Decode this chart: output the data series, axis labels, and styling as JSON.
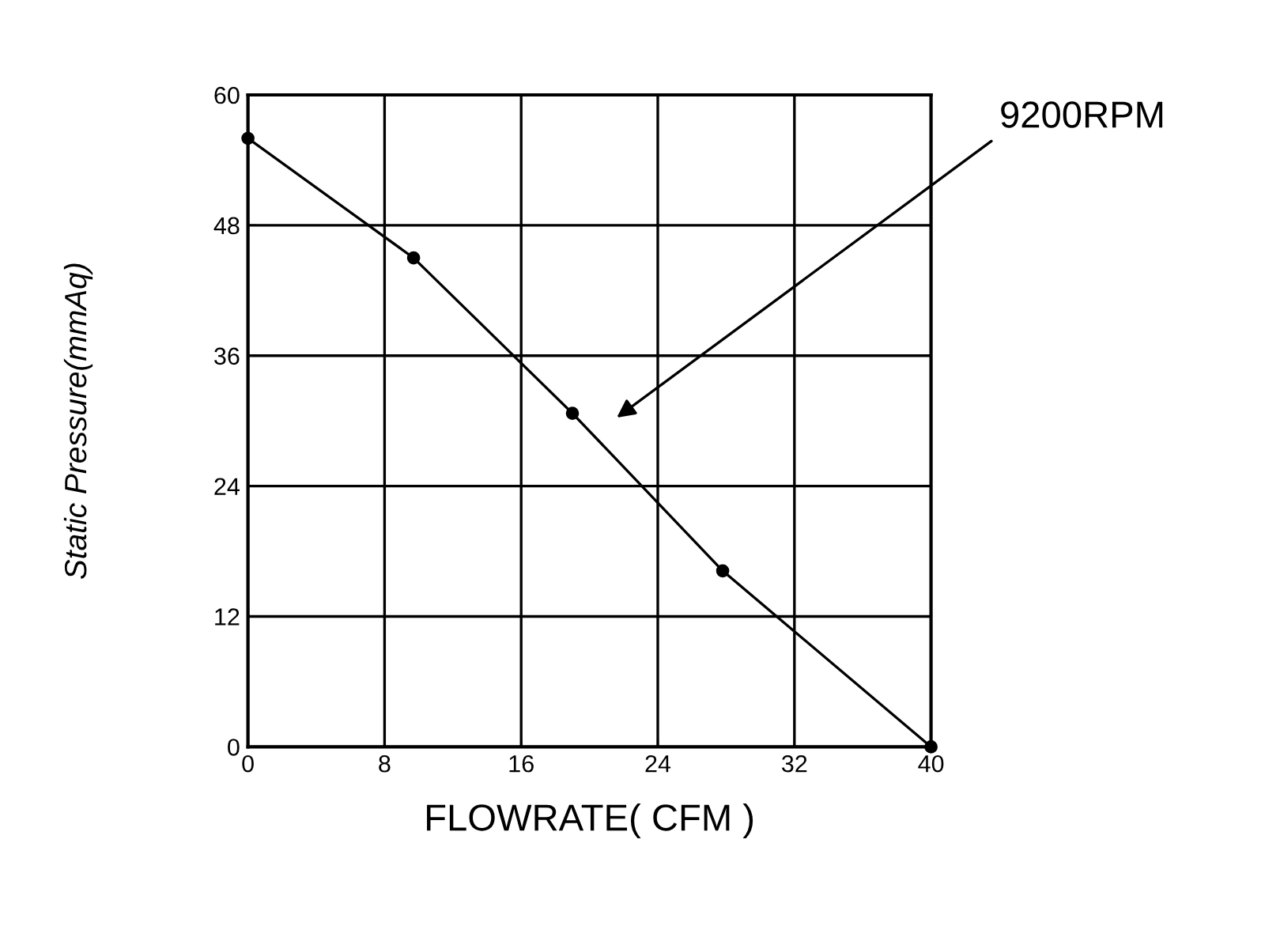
{
  "chart_data": {
    "type": "line",
    "xlabel": "FLOWRATE( CFM )",
    "ylabel": "Static Pressure(mmAq)",
    "x": [
      0,
      9.7,
      19,
      27.8,
      40
    ],
    "series": [
      {
        "color": "#000000",
        "values": [
          56,
          45,
          30.7,
          16.2,
          0
        ]
      }
    ],
    "xlim": [
      0,
      40
    ],
    "ylim": [
      0,
      60
    ],
    "xticks": [
      0,
      8,
      16,
      24,
      32,
      40
    ],
    "yticks": [
      0,
      12,
      24,
      36,
      48,
      60
    ],
    "grid": true,
    "marker": "circle",
    "line_style": "solid",
    "annotations": [
      "9200RPM"
    ]
  }
}
